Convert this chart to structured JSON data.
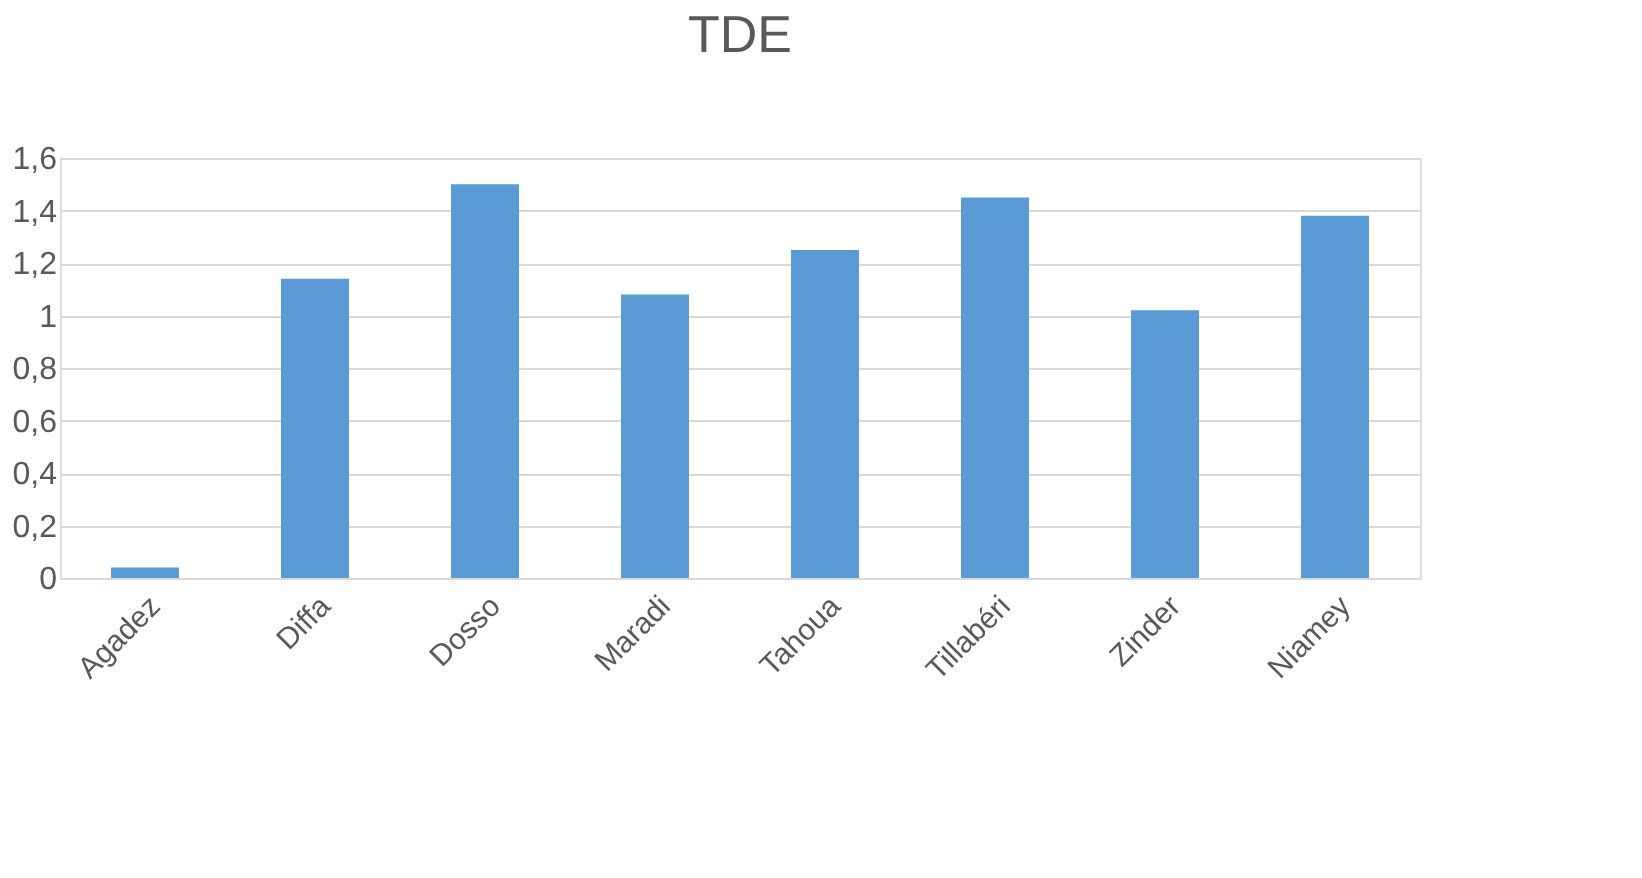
{
  "chart_data": {
    "type": "bar",
    "title": "TDE",
    "categories": [
      "Agadez",
      "Diffa",
      "Dosso",
      "Maradi",
      "Tahoua",
      "Tillabéri",
      "Zinder",
      "Niamey"
    ],
    "values": [
      0.04,
      1.14,
      1.5,
      1.08,
      1.25,
      1.45,
      1.02,
      1.38
    ],
    "color": "#5b9bd5",
    "ylim": [
      0,
      1.6
    ],
    "yticks": [
      0,
      {
        "value": 0.2,
        "label": "0,2"
      },
      {
        "value": 0.4,
        "label": "0,4"
      },
      {
        "value": 0.6,
        "label": "0,6"
      },
      {
        "value": 0.8,
        "label": "0,8"
      },
      1,
      {
        "value": 1.2,
        "label": "1,2"
      },
      {
        "value": 1.4,
        "label": "1,4"
      },
      {
        "value": 1.6,
        "label": "1,6"
      }
    ],
    "grid": "y"
  }
}
